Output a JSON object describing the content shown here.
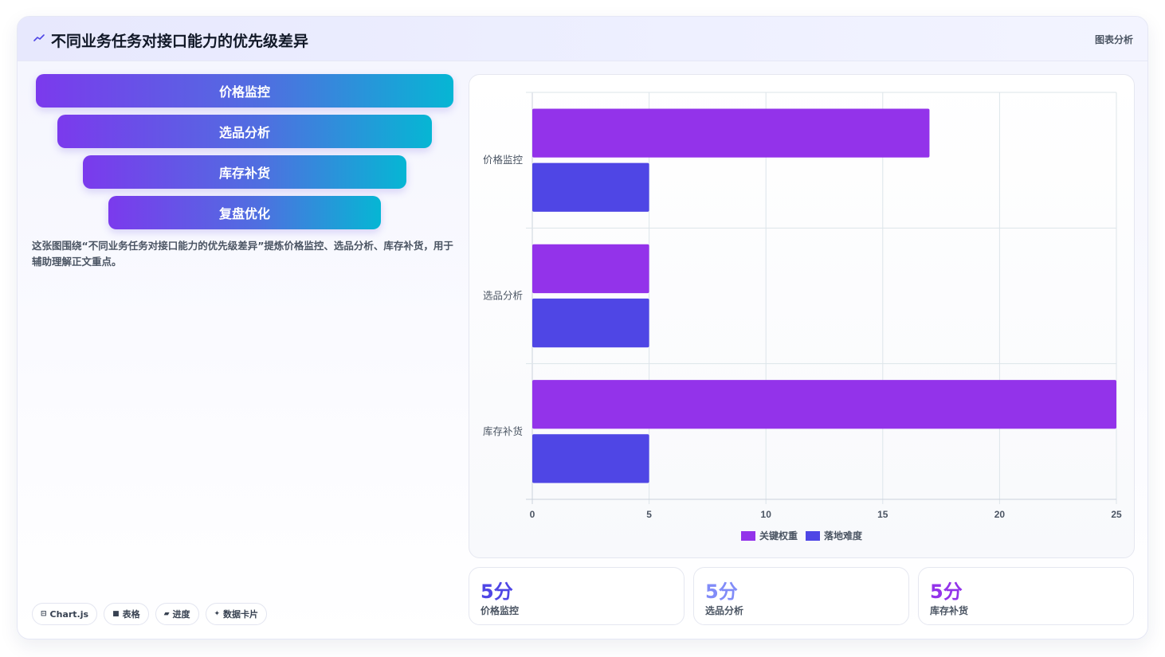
{
  "header": {
    "title": "不同业务任务对接口能力的优先级差异",
    "tag": "图表分析",
    "icon": "trend-line-icon"
  },
  "funnel": {
    "items": [
      {
        "label": "价格监控"
      },
      {
        "label": "选品分析"
      },
      {
        "label": "库存补货"
      },
      {
        "label": "复盘优化"
      }
    ]
  },
  "description": "这张图围绕“不同业务任务对接口能力的优先级差异”提炼价格监控、选品分析、库存补货，用于辅助理解正文重点。",
  "tags": [
    {
      "icon": "chart-icon",
      "glyph": "⊟",
      "label": "Chart.js"
    },
    {
      "icon": "table-icon",
      "glyph": "■",
      "label": "表格"
    },
    {
      "icon": "progress-icon",
      "glyph": "▰",
      "label": "进度"
    },
    {
      "icon": "sparkle-icon",
      "glyph": "✦",
      "label": "数据卡片"
    }
  ],
  "chart_data": {
    "type": "bar",
    "orientation": "horizontal",
    "categories": [
      "价格监控",
      "选品分析",
      "库存补货"
    ],
    "series": [
      {
        "name": "关键权重",
        "color": "#9333ea",
        "values": [
          17,
          5,
          25
        ]
      },
      {
        "name": "落地难度",
        "color": "#4f46e5",
        "values": [
          5,
          5,
          5
        ]
      }
    ],
    "xlim": [
      0,
      25
    ],
    "xticks": [
      "0",
      "5",
      "10",
      "15",
      "20",
      "25"
    ],
    "grid": true,
    "legend_position": "bottom"
  },
  "stats": [
    {
      "value": "5分",
      "label": "价格监控",
      "color": "#4f46e5"
    },
    {
      "value": "5分",
      "label": "选品分析",
      "color": "#818cf8"
    },
    {
      "value": "5分",
      "label": "库存补货",
      "color": "#9333ea"
    }
  ]
}
